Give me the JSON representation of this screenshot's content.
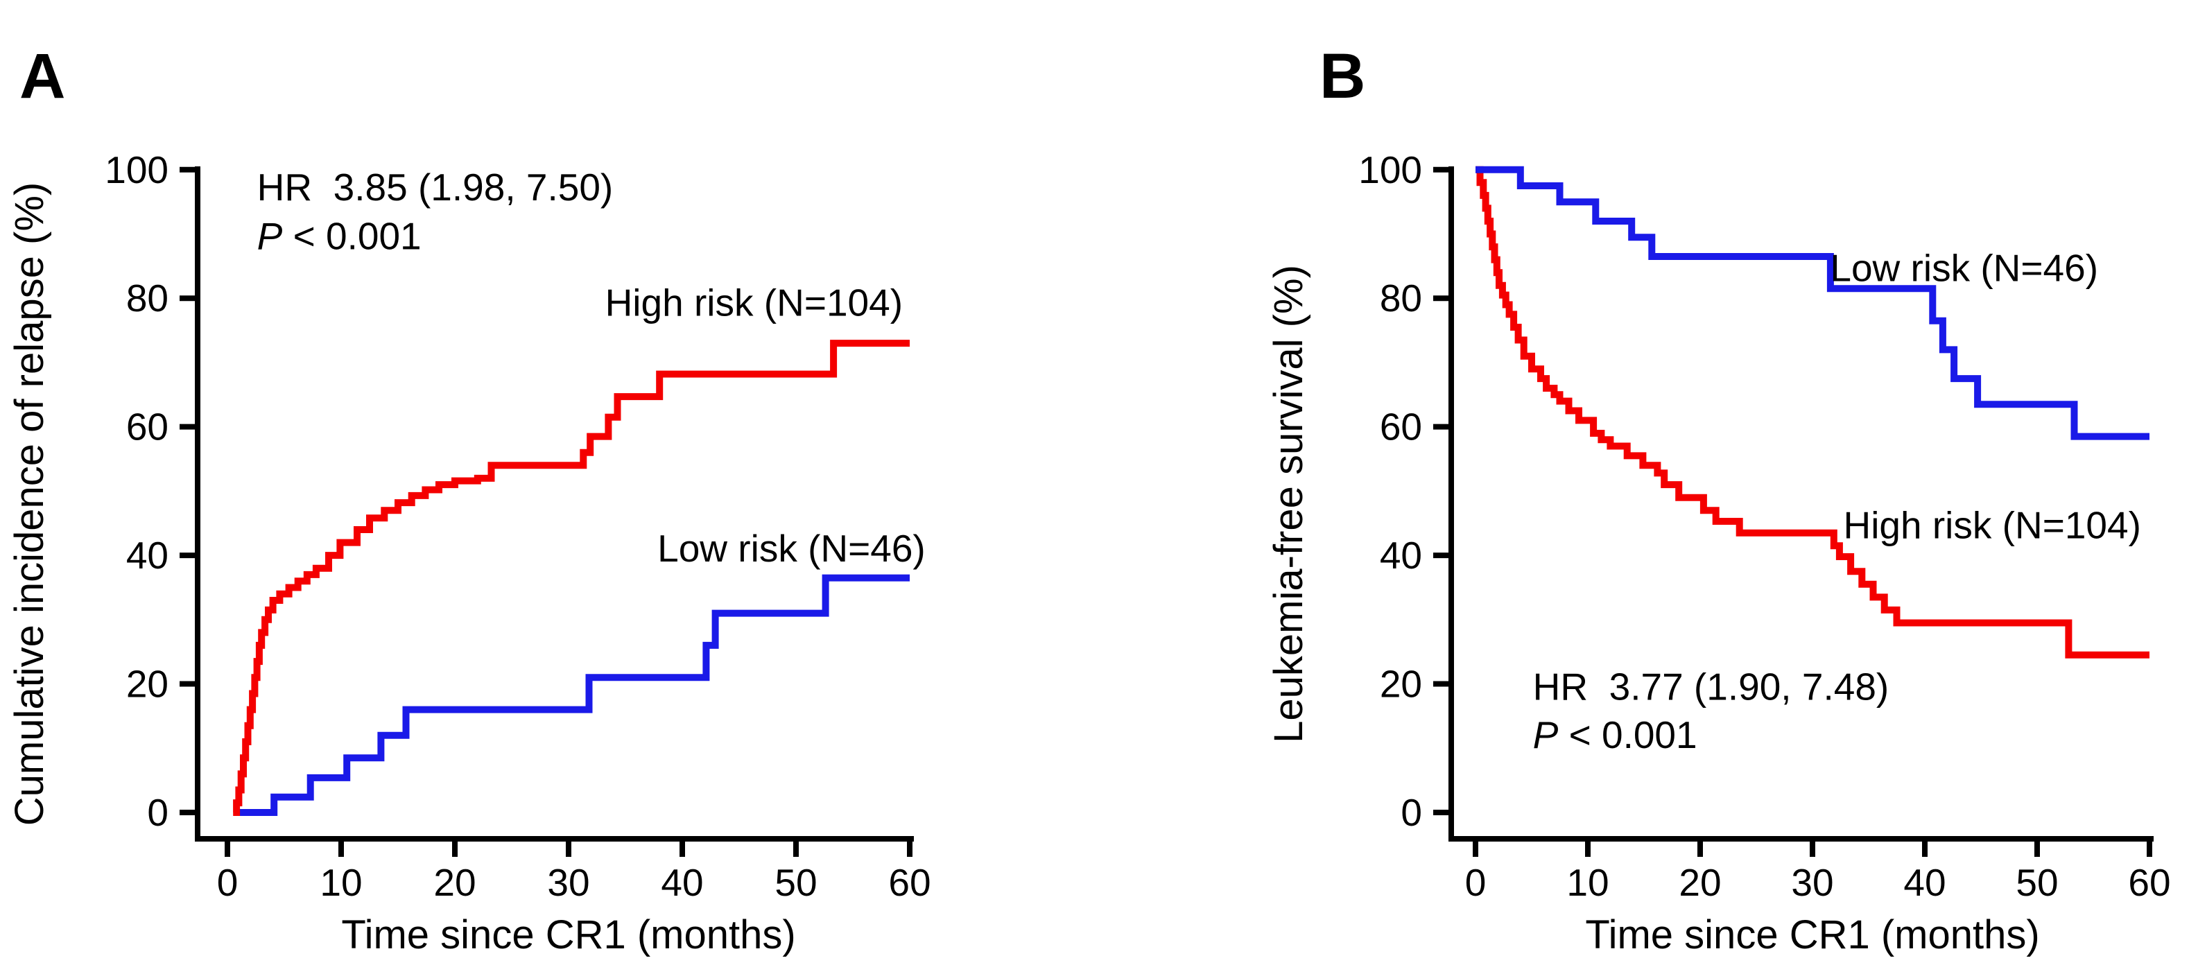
{
  "figure_title": "",
  "chart_data": [
    {
      "panel_label": "A",
      "type": "line",
      "subtype": "kaplan-meier-step",
      "xlabel": "Time since CR1 (months)",
      "ylabel": "Cumulative incidence of relapse (%)",
      "xlim": [
        0,
        60
      ],
      "ylim": [
        0,
        100
      ],
      "xticks": [
        0,
        10,
        20,
        30,
        40,
        50,
        60
      ],
      "yticks": [
        0,
        20,
        40,
        60,
        80,
        100
      ],
      "grid": false,
      "legend_position": "inline-labels",
      "annotation": {
        "hr_text": "HR  3.85 (1.98, 7.50)",
        "p_italic": "P",
        "p_text": " < 0.001",
        "x_month": 2.6,
        "y_pct_line1": 97.3,
        "y_pct_line2": 89.7
      },
      "series": [
        {
          "name": "low-risk",
          "label": "Low risk (N=46)",
          "n": 46,
          "color": "#1a1ae8",
          "label_pos": {
            "x_month": 49.6,
            "y_pct": 41.1
          },
          "steps": [
            [
              0.9,
              0
            ],
            [
              4.1,
              2.4
            ],
            [
              7.3,
              5.4
            ],
            [
              10.5,
              8.5
            ],
            [
              13.5,
              12
            ],
            [
              15.7,
              16
            ],
            [
              31.8,
              21
            ],
            [
              42.1,
              26
            ],
            [
              42.9,
              31
            ],
            [
              52.6,
              36.5
            ],
            [
              60,
              36.5
            ]
          ]
        },
        {
          "name": "high-risk",
          "label": "High risk (N=104)",
          "n": 104,
          "color": "#f40000",
          "label_pos": {
            "x_month": 46.3,
            "y_pct": 79.3
          },
          "steps": [
            [
              0.5,
              0
            ],
            [
              0.8,
              1.5
            ],
            [
              1.0,
              3.5
            ],
            [
              1.2,
              6
            ],
            [
              1.4,
              8.5
            ],
            [
              1.6,
              11
            ],
            [
              1.8,
              13.5
            ],
            [
              2.0,
              16
            ],
            [
              2.2,
              18.5
            ],
            [
              2.4,
              21
            ],
            [
              2.6,
              23.5
            ],
            [
              2.8,
              26
            ],
            [
              3.0,
              28
            ],
            [
              3.3,
              30
            ],
            [
              3.6,
              31.5
            ],
            [
              4.0,
              33
            ],
            [
              4.6,
              34
            ],
            [
              5.4,
              35
            ],
            [
              6.2,
              36
            ],
            [
              7.0,
              37
            ],
            [
              7.8,
              38
            ],
            [
              8.9,
              40
            ],
            [
              9.9,
              42
            ],
            [
              11.4,
              44
            ],
            [
              12.5,
              45.8
            ],
            [
              13.8,
              47
            ],
            [
              15.0,
              48.2
            ],
            [
              16.2,
              49.3
            ],
            [
              17.4,
              50.2
            ],
            [
              18.6,
              51
            ],
            [
              20.0,
              51.6
            ],
            [
              22.0,
              52
            ],
            [
              23.2,
              54
            ],
            [
              31.3,
              56
            ],
            [
              31.9,
              58.5
            ],
            [
              33.5,
              61.5
            ],
            [
              34.3,
              64.7
            ],
            [
              38.0,
              68.2
            ],
            [
              53.3,
              73
            ],
            [
              60,
              73
            ]
          ]
        }
      ]
    },
    {
      "panel_label": "B",
      "type": "line",
      "subtype": "kaplan-meier-step",
      "xlabel": "Time since CR1 (months)",
      "ylabel": "Leukemia-free survival (%)",
      "xlim": [
        0,
        60
      ],
      "ylim": [
        0,
        100
      ],
      "xticks": [
        0,
        10,
        20,
        30,
        40,
        50,
        60
      ],
      "yticks": [
        0,
        20,
        40,
        60,
        80,
        100
      ],
      "grid": false,
      "legend_position": "inline-labels",
      "annotation": {
        "hr_text": "HR  3.77 (1.90, 7.48)",
        "p_italic": "P",
        "p_text": " < 0.001",
        "x_month": 5.1,
        "y_pct_line1": 19.6,
        "y_pct_line2": 12.1
      },
      "series": [
        {
          "name": "high-risk",
          "label": "High risk (N=104)",
          "n": 104,
          "color": "#f40000",
          "label_pos": {
            "x_month": 46.0,
            "y_pct": 44.7
          },
          "steps": [
            [
              0,
              100
            ],
            [
              0.4,
              98
            ],
            [
              0.7,
              96
            ],
            [
              0.9,
              94
            ],
            [
              1.1,
              92
            ],
            [
              1.3,
              90
            ],
            [
              1.5,
              88
            ],
            [
              1.7,
              86
            ],
            [
              1.9,
              84
            ],
            [
              2.1,
              82
            ],
            [
              2.4,
              80.5
            ],
            [
              2.7,
              79
            ],
            [
              3.0,
              77.5
            ],
            [
              3.4,
              75.5
            ],
            [
              3.8,
              73.5
            ],
            [
              4.3,
              71
            ],
            [
              5.0,
              69
            ],
            [
              5.8,
              67.5
            ],
            [
              6.3,
              66
            ],
            [
              7.0,
              65
            ],
            [
              7.5,
              64
            ],
            [
              8.3,
              62.5
            ],
            [
              9.2,
              61
            ],
            [
              10.5,
              59
            ],
            [
              11.2,
              58
            ],
            [
              12.0,
              57
            ],
            [
              13.5,
              55.5
            ],
            [
              14.9,
              54
            ],
            [
              16.2,
              52.8
            ],
            [
              16.8,
              51
            ],
            [
              18.1,
              49
            ],
            [
              20.3,
              47
            ],
            [
              21.4,
              45.3
            ],
            [
              23.5,
              43.5
            ],
            [
              31.9,
              41.5
            ],
            [
              32.4,
              39.8
            ],
            [
              33.4,
              37.5
            ],
            [
              34.4,
              35.5
            ],
            [
              35.4,
              33.5
            ],
            [
              36.4,
              31.5
            ],
            [
              37.5,
              29.5
            ],
            [
              52.8,
              24.5
            ],
            [
              60,
              24.5
            ]
          ]
        },
        {
          "name": "low-risk",
          "label": "Low risk (N=46)",
          "n": 46,
          "color": "#1a1ae8",
          "label_pos": {
            "x_month": 43.5,
            "y_pct": 84.7
          },
          "steps": [
            [
              0,
              100
            ],
            [
              4.0,
              97.5
            ],
            [
              7.5,
              95
            ],
            [
              10.7,
              92
            ],
            [
              13.9,
              89.5
            ],
            [
              15.7,
              86.5
            ],
            [
              31.6,
              81.5
            ],
            [
              40.7,
              76.5
            ],
            [
              41.6,
              72
            ],
            [
              42.6,
              67.5
            ],
            [
              44.7,
              63.5
            ],
            [
              53.3,
              58.5
            ],
            [
              60,
              58.5
            ]
          ]
        }
      ]
    }
  ]
}
